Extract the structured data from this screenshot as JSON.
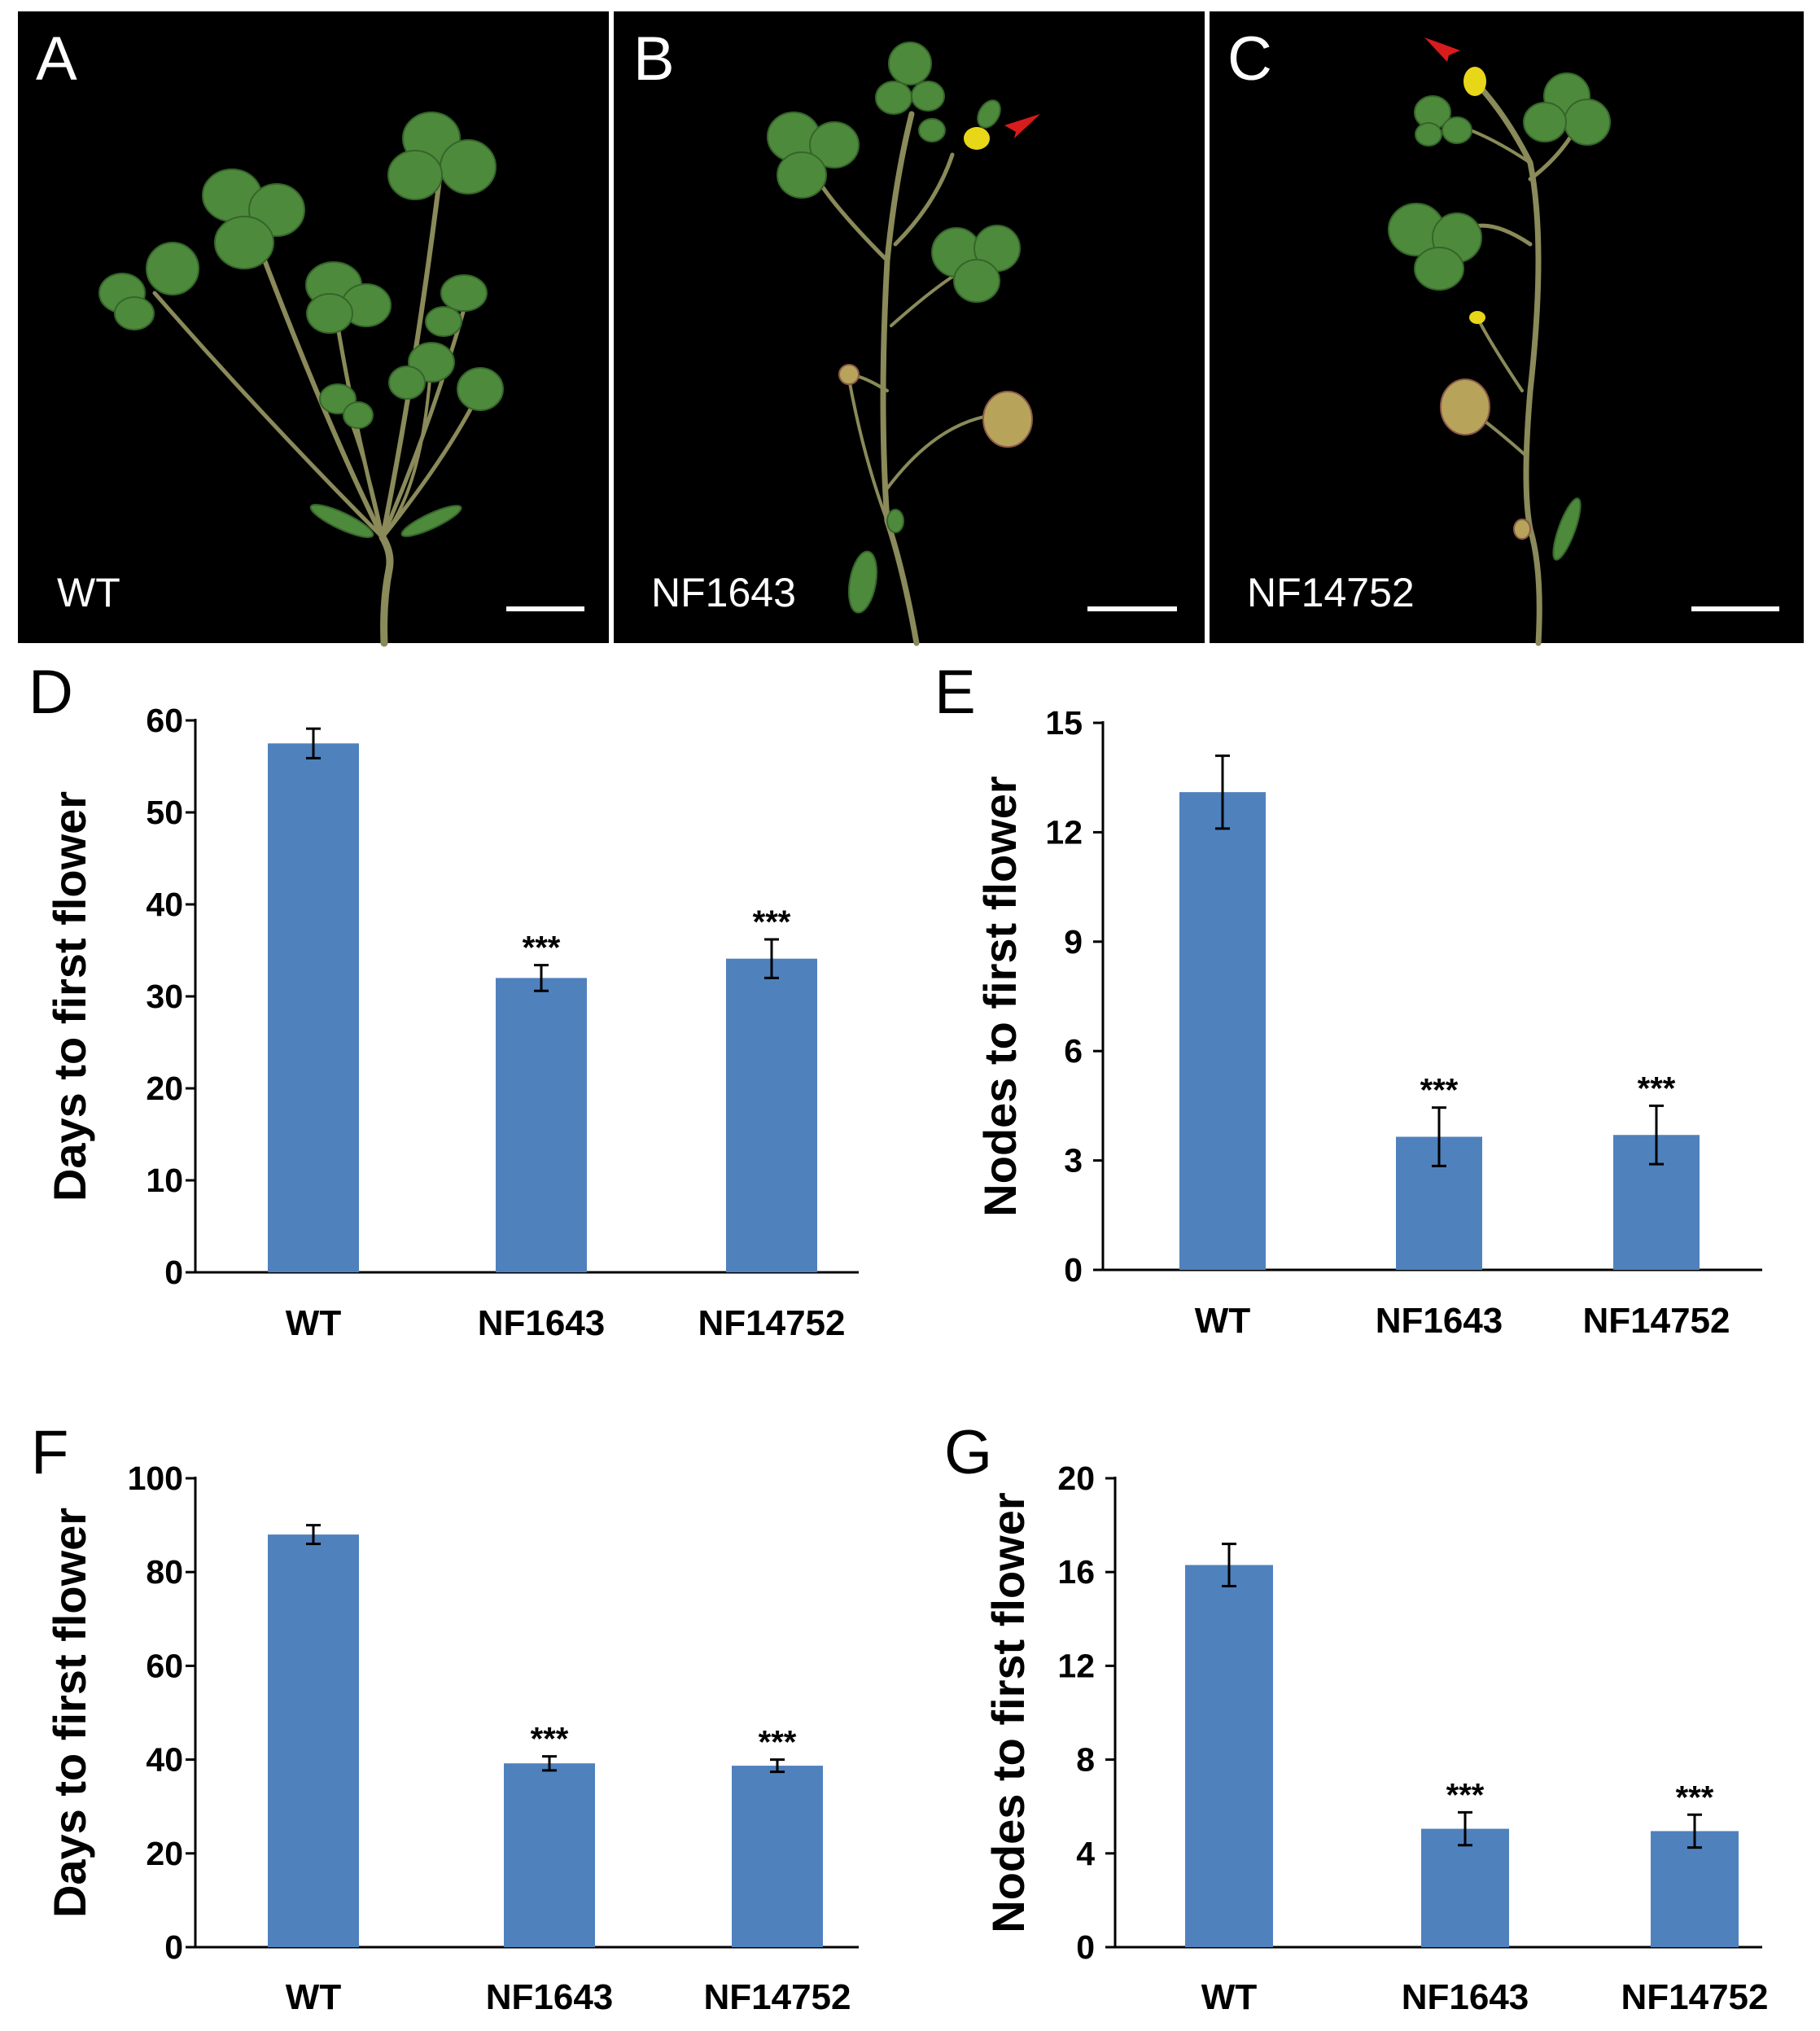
{
  "photos": [
    {
      "panel": "A",
      "genotype": "WT",
      "flower_arrow": false
    },
    {
      "panel": "B",
      "genotype": "NF1643",
      "flower_arrow": true
    },
    {
      "panel": "C",
      "genotype": "NF14752",
      "flower_arrow": true
    }
  ],
  "colors": {
    "bar": "#4f81bd",
    "photo_background": "#000000",
    "arrow": "#d81c1c",
    "flower": "#e8d619"
  },
  "chart_data": [
    {
      "panel": "D",
      "type": "bar",
      "categories": [
        "WT",
        "NF1643",
        "NF14752"
      ],
      "values": [
        57.5,
        32.0,
        34.1
      ],
      "errors": [
        1.6,
        1.4,
        2.1
      ],
      "significance": [
        "",
        "***",
        "***"
      ],
      "ylabel": "Days to first flower",
      "ylim": [
        0,
        60
      ],
      "yticks": [
        0,
        10,
        20,
        30,
        40,
        50,
        60
      ],
      "grid": false
    },
    {
      "panel": "E",
      "type": "bar",
      "categories": [
        "WT",
        "NF1643",
        "NF14752"
      ],
      "values": [
        13.1,
        3.65,
        3.7
      ],
      "errors": [
        1.0,
        0.8,
        0.8
      ],
      "significance": [
        "",
        "***",
        "***"
      ],
      "ylabel": "Nodes to first flower",
      "ylim": [
        0,
        15
      ],
      "yticks": [
        0,
        3,
        6,
        9,
        12,
        15
      ],
      "grid": false
    },
    {
      "panel": "F",
      "type": "bar",
      "categories": [
        "WT",
        "NF1643",
        "NF14752"
      ],
      "values": [
        88.0,
        39.2,
        38.7
      ],
      "errors": [
        2.0,
        1.5,
        1.3
      ],
      "significance": [
        "",
        "***",
        "***"
      ],
      "ylabel": "Days to first flower",
      "ylim": [
        0,
        100
      ],
      "yticks": [
        0,
        20,
        40,
        60,
        80,
        100
      ],
      "grid": false
    },
    {
      "panel": "G",
      "type": "bar",
      "categories": [
        "WT",
        "NF1643",
        "NF14752"
      ],
      "values": [
        16.3,
        5.05,
        4.95
      ],
      "errors": [
        0.9,
        0.7,
        0.7
      ],
      "significance": [
        "",
        "***",
        "***"
      ],
      "ylabel": "Nodes to first flower",
      "ylim": [
        0,
        20
      ],
      "yticks": [
        0,
        4,
        8,
        12,
        16,
        20
      ],
      "grid": false
    }
  ]
}
